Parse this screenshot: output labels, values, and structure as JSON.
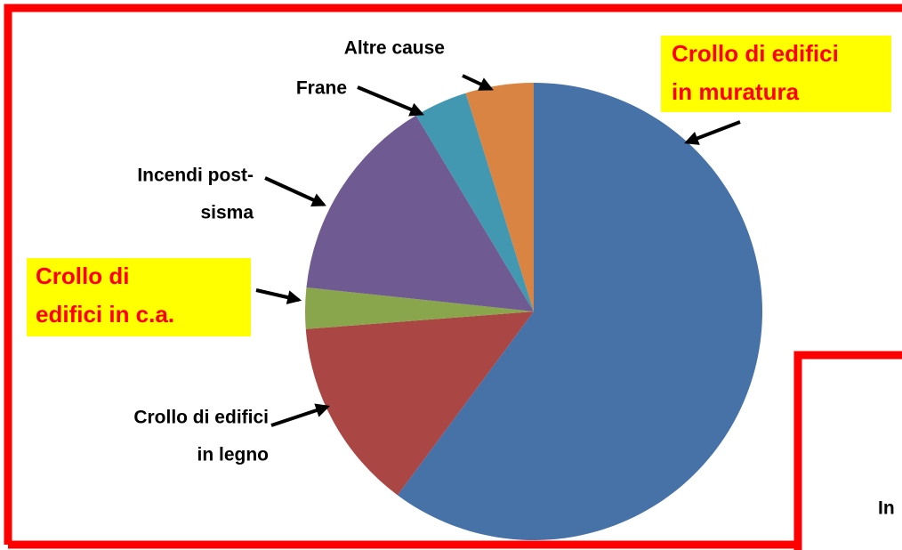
{
  "chart_data": {
    "type": "pie",
    "categories": [
      [
        "Crollo di edifici",
        "in muratura"
      ],
      [
        "Crollo di edifici",
        "in legno"
      ],
      [
        "Crollo di",
        "edifici in c.a."
      ],
      [
        "Incendi post-",
        "sisma"
      ],
      [
        "Frane"
      ],
      [
        "Altre cause"
      ]
    ],
    "values": [
      60.1,
      13.6,
      2.9,
      14.7,
      3.8,
      4.8
    ],
    "colors": [
      "#4672a8",
      "#aa4644",
      "#8aa64c",
      "#6f5a91",
      "#4298b0",
      "#da8444"
    ]
  },
  "fragment_text": "In"
}
